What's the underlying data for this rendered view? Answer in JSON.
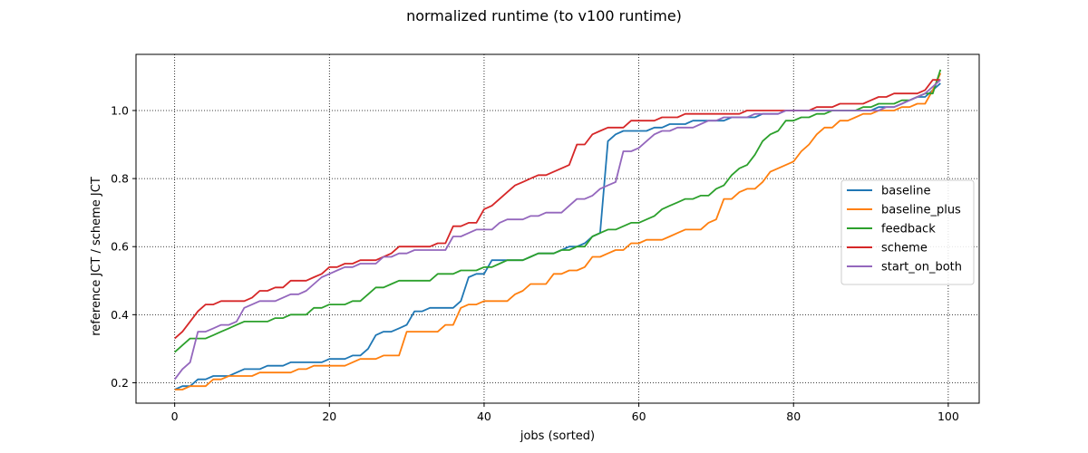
{
  "chart_data": {
    "type": "line",
    "title": "normalized runtime (to v100 runtime)",
    "xlabel": "jobs (sorted)",
    "ylabel": "reference JCT / scheme JCT",
    "xlim": [
      -5,
      104
    ],
    "ylim": [
      0.14,
      1.165
    ],
    "x_ticks": [
      0,
      20,
      40,
      60,
      80,
      100
    ],
    "y_ticks": [
      0.2,
      0.4,
      0.6,
      0.8,
      1.0
    ],
    "x_tick_labels": [
      "0",
      "20",
      "40",
      "60",
      "80",
      "100"
    ],
    "y_tick_labels": [
      "0.2",
      "0.4",
      "0.6",
      "0.8",
      "1.0"
    ],
    "grid": true,
    "legend_position": "center-right",
    "series": [
      {
        "name": "baseline",
        "color": "#1f77b4",
        "values": [
          0.18,
          0.19,
          0.19,
          0.21,
          0.21,
          0.22,
          0.22,
          0.22,
          0.23,
          0.24,
          0.24,
          0.24,
          0.25,
          0.25,
          0.25,
          0.26,
          0.26,
          0.26,
          0.26,
          0.26,
          0.27,
          0.27,
          0.27,
          0.28,
          0.28,
          0.3,
          0.34,
          0.35,
          0.35,
          0.36,
          0.37,
          0.41,
          0.41,
          0.42,
          0.42,
          0.42,
          0.42,
          0.44,
          0.51,
          0.52,
          0.52,
          0.56,
          0.56,
          0.56,
          0.56,
          0.56,
          0.57,
          0.58,
          0.58,
          0.58,
          0.59,
          0.6,
          0.6,
          0.61,
          0.63,
          0.64,
          0.91,
          0.93,
          0.94,
          0.94,
          0.94,
          0.94,
          0.95,
          0.95,
          0.96,
          0.96,
          0.96,
          0.97,
          0.97,
          0.97,
          0.97,
          0.97,
          0.98,
          0.98,
          0.98,
          0.98,
          0.99,
          0.99,
          0.99,
          1.0,
          1.0,
          1.0,
          1.0,
          1.0,
          1.0,
          1.0,
          1.0,
          1.0,
          1.0,
          1.0,
          1.0,
          1.01,
          1.01,
          1.01,
          1.02,
          1.03,
          1.04,
          1.04,
          1.06,
          1.08
        ]
      },
      {
        "name": "baseline_plus",
        "color": "#ff7f0e",
        "values": [
          0.18,
          0.18,
          0.19,
          0.19,
          0.19,
          0.21,
          0.21,
          0.22,
          0.22,
          0.22,
          0.22,
          0.23,
          0.23,
          0.23,
          0.23,
          0.23,
          0.24,
          0.24,
          0.25,
          0.25,
          0.25,
          0.25,
          0.25,
          0.26,
          0.27,
          0.27,
          0.27,
          0.28,
          0.28,
          0.28,
          0.35,
          0.35,
          0.35,
          0.35,
          0.35,
          0.37,
          0.37,
          0.42,
          0.43,
          0.43,
          0.44,
          0.44,
          0.44,
          0.44,
          0.46,
          0.47,
          0.49,
          0.49,
          0.49,
          0.52,
          0.52,
          0.53,
          0.53,
          0.54,
          0.57,
          0.57,
          0.58,
          0.59,
          0.59,
          0.61,
          0.61,
          0.62,
          0.62,
          0.62,
          0.63,
          0.64,
          0.65,
          0.65,
          0.65,
          0.67,
          0.68,
          0.74,
          0.74,
          0.76,
          0.77,
          0.77,
          0.79,
          0.82,
          0.83,
          0.84,
          0.85,
          0.88,
          0.9,
          0.93,
          0.95,
          0.95,
          0.97,
          0.97,
          0.98,
          0.99,
          0.99,
          1.0,
          1.0,
          1.0,
          1.01,
          1.01,
          1.02,
          1.02,
          1.06,
          1.11
        ]
      },
      {
        "name": "feedback",
        "color": "#2ca02c",
        "values": [
          0.29,
          0.31,
          0.33,
          0.33,
          0.33,
          0.34,
          0.35,
          0.36,
          0.37,
          0.38,
          0.38,
          0.38,
          0.38,
          0.39,
          0.39,
          0.4,
          0.4,
          0.4,
          0.42,
          0.42,
          0.43,
          0.43,
          0.43,
          0.44,
          0.44,
          0.46,
          0.48,
          0.48,
          0.49,
          0.5,
          0.5,
          0.5,
          0.5,
          0.5,
          0.52,
          0.52,
          0.52,
          0.53,
          0.53,
          0.53,
          0.54,
          0.54,
          0.55,
          0.56,
          0.56,
          0.56,
          0.57,
          0.58,
          0.58,
          0.58,
          0.59,
          0.59,
          0.6,
          0.6,
          0.63,
          0.64,
          0.65,
          0.65,
          0.66,
          0.67,
          0.67,
          0.68,
          0.69,
          0.71,
          0.72,
          0.73,
          0.74,
          0.74,
          0.75,
          0.75,
          0.77,
          0.78,
          0.81,
          0.83,
          0.84,
          0.87,
          0.91,
          0.93,
          0.94,
          0.97,
          0.97,
          0.98,
          0.98,
          0.99,
          0.99,
          1.0,
          1.0,
          1.0,
          1.0,
          1.01,
          1.01,
          1.02,
          1.02,
          1.02,
          1.03,
          1.03,
          1.04,
          1.05,
          1.05,
          1.12
        ]
      },
      {
        "name": "scheme",
        "color": "#d62728",
        "values": [
          0.33,
          0.35,
          0.38,
          0.41,
          0.43,
          0.43,
          0.44,
          0.44,
          0.44,
          0.44,
          0.45,
          0.47,
          0.47,
          0.48,
          0.48,
          0.5,
          0.5,
          0.5,
          0.51,
          0.52,
          0.54,
          0.54,
          0.55,
          0.55,
          0.56,
          0.56,
          0.56,
          0.57,
          0.58,
          0.6,
          0.6,
          0.6,
          0.6,
          0.6,
          0.61,
          0.61,
          0.66,
          0.66,
          0.67,
          0.67,
          0.71,
          0.72,
          0.74,
          0.76,
          0.78,
          0.79,
          0.8,
          0.81,
          0.81,
          0.82,
          0.83,
          0.84,
          0.9,
          0.9,
          0.93,
          0.94,
          0.95,
          0.95,
          0.95,
          0.97,
          0.97,
          0.97,
          0.97,
          0.98,
          0.98,
          0.98,
          0.99,
          0.99,
          0.99,
          0.99,
          0.99,
          0.99,
          0.99,
          0.99,
          1.0,
          1.0,
          1.0,
          1.0,
          1.0,
          1.0,
          1.0,
          1.0,
          1.0,
          1.01,
          1.01,
          1.01,
          1.02,
          1.02,
          1.02,
          1.02,
          1.03,
          1.04,
          1.04,
          1.05,
          1.05,
          1.05,
          1.05,
          1.06,
          1.09,
          1.09
        ]
      },
      {
        "name": "start_on_both",
        "color": "#9467bd",
        "values": [
          0.21,
          0.24,
          0.26,
          0.35,
          0.35,
          0.36,
          0.37,
          0.37,
          0.38,
          0.42,
          0.43,
          0.44,
          0.44,
          0.44,
          0.45,
          0.46,
          0.46,
          0.47,
          0.49,
          0.51,
          0.52,
          0.53,
          0.54,
          0.54,
          0.55,
          0.55,
          0.55,
          0.57,
          0.57,
          0.58,
          0.58,
          0.59,
          0.59,
          0.59,
          0.59,
          0.59,
          0.63,
          0.63,
          0.64,
          0.65,
          0.65,
          0.65,
          0.67,
          0.68,
          0.68,
          0.68,
          0.69,
          0.69,
          0.7,
          0.7,
          0.7,
          0.72,
          0.74,
          0.74,
          0.75,
          0.77,
          0.78,
          0.79,
          0.88,
          0.88,
          0.89,
          0.91,
          0.93,
          0.94,
          0.94,
          0.95,
          0.95,
          0.95,
          0.96,
          0.97,
          0.97,
          0.98,
          0.98,
          0.98,
          0.98,
          0.99,
          0.99,
          0.99,
          0.99,
          1.0,
          1.0,
          1.0,
          1.0,
          1.0,
          1.0,
          1.0,
          1.0,
          1.0,
          1.0,
          1.0,
          1.0,
          1.0,
          1.01,
          1.01,
          1.02,
          1.03,
          1.04,
          1.05,
          1.07,
          1.09
        ]
      }
    ]
  }
}
